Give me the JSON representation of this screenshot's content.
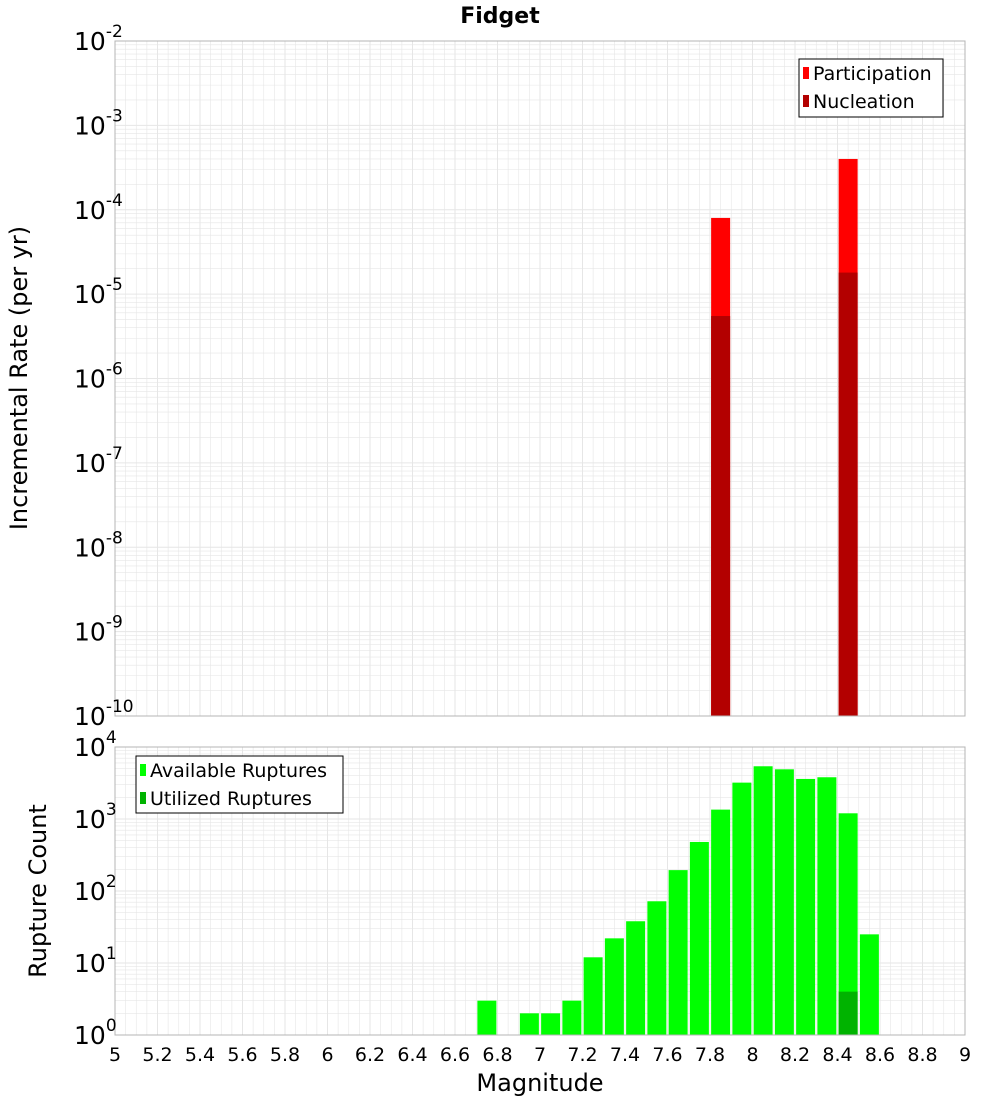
{
  "title": "Fidget",
  "colors": {
    "participation": "#ff0000",
    "nucleation": "#b30000",
    "available": "#00ff00",
    "utilized": "#00b300",
    "grid": "#e6e6e6",
    "frame": "#b4b4b4"
  },
  "chart_data": [
    {
      "type": "bar",
      "panel": "top",
      "title": "Fidget",
      "xlabel": "",
      "ylabel": "Incremental Rate (per yr)",
      "y_scale": "log",
      "ylim": [
        1e-10,
        0.01
      ],
      "xlim": [
        5,
        9
      ],
      "y_ticks": [
        {
          "base": "10",
          "exp": "-10"
        },
        {
          "base": "10",
          "exp": "-9"
        },
        {
          "base": "10",
          "exp": "-8"
        },
        {
          "base": "10",
          "exp": "-7"
        },
        {
          "base": "10",
          "exp": "-6"
        },
        {
          "base": "10",
          "exp": "-5"
        },
        {
          "base": "10",
          "exp": "-4"
        },
        {
          "base": "10",
          "exp": "-3"
        },
        {
          "base": "10",
          "exp": "-2"
        }
      ],
      "grid": true,
      "legend_position": "top-right",
      "series": [
        {
          "name": "Participation",
          "color": "#ff0000",
          "x": [
            7.85,
            8.45
          ],
          "values": [
            8e-05,
            0.0004
          ]
        },
        {
          "name": "Nucleation",
          "color": "#b30000",
          "x": [
            7.85,
            8.45
          ],
          "values": [
            5.5e-06,
            1.8e-05
          ]
        }
      ]
    },
    {
      "type": "bar",
      "panel": "bottom",
      "xlabel": "Magnitude",
      "ylabel": "Rupture Count",
      "y_scale": "log",
      "ylim": [
        1,
        10000
      ],
      "xlim": [
        5,
        9
      ],
      "x_tick_labels": [
        "5",
        "5.2",
        "5.4",
        "5.6",
        "5.8",
        "6",
        "6.2",
        "6.4",
        "6.6",
        "6.8",
        "7",
        "7.2",
        "7.4",
        "7.6",
        "7.8",
        "8",
        "8.2",
        "8.4",
        "8.6",
        "8.8",
        "9"
      ],
      "y_ticks": [
        {
          "base": "10",
          "exp": "0"
        },
        {
          "base": "10",
          "exp": "1"
        },
        {
          "base": "10",
          "exp": "2"
        },
        {
          "base": "10",
          "exp": "3"
        },
        {
          "base": "10",
          "exp": "4"
        }
      ],
      "grid": true,
      "legend_position": "top-left",
      "series": [
        {
          "name": "Available Ruptures",
          "color": "#00ff00",
          "x": [
            6.75,
            6.95,
            7.05,
            7.15,
            7.25,
            7.35,
            7.45,
            7.55,
            7.65,
            7.75,
            7.85,
            7.95,
            8.05,
            8.15,
            8.25,
            8.35,
            8.45,
            8.55
          ],
          "values": [
            3,
            2,
            2,
            3,
            12,
            22,
            38,
            72,
            195,
            480,
            1350,
            3200,
            5400,
            4900,
            3600,
            3800,
            1200,
            25
          ]
        },
        {
          "name": "Utilized Ruptures",
          "color": "#00b300",
          "x": [
            7.85,
            8.45
          ],
          "values": [
            1,
            4
          ]
        }
      ]
    }
  ]
}
